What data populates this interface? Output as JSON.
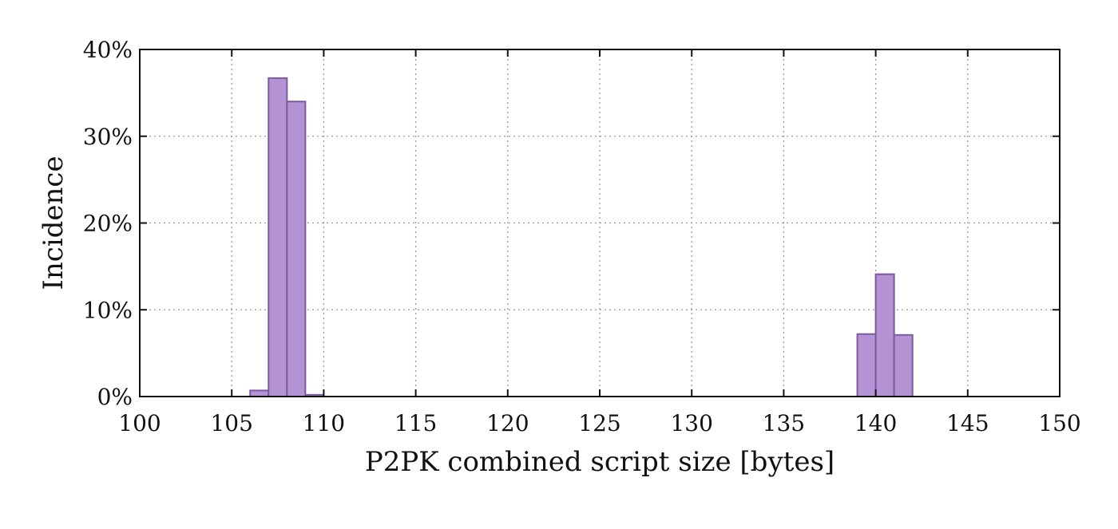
{
  "chart_data": {
    "type": "bar",
    "xlabel": "P2PK combined script size [bytes]",
    "ylabel": "Incidence",
    "xlim": [
      100,
      150
    ],
    "ylim": [
      0,
      40
    ],
    "xticks": [
      100,
      105,
      110,
      115,
      120,
      125,
      130,
      135,
      140,
      145,
      150
    ],
    "xtick_labels": [
      "100",
      "105",
      "110",
      "115",
      "120",
      "125",
      "130",
      "135",
      "140",
      "145",
      "150"
    ],
    "yticks": [
      0,
      10,
      20,
      30,
      40
    ],
    "ytick_labels": [
      "0%",
      "10%",
      "20%",
      "30%",
      "40%"
    ],
    "grid": true,
    "bar_width": 1,
    "bars": [
      {
        "x": 106,
        "value": 0.7
      },
      {
        "x": 107,
        "value": 36.7
      },
      {
        "x": 108,
        "value": 34.0
      },
      {
        "x": 109,
        "value": 0.2
      },
      {
        "x": 139,
        "value": 7.2
      },
      {
        "x": 140,
        "value": 14.1
      },
      {
        "x": 141,
        "value": 7.1
      }
    ],
    "colors": {
      "bar_fill": "#b393d3",
      "bar_stroke": "#7d5a9e"
    }
  }
}
